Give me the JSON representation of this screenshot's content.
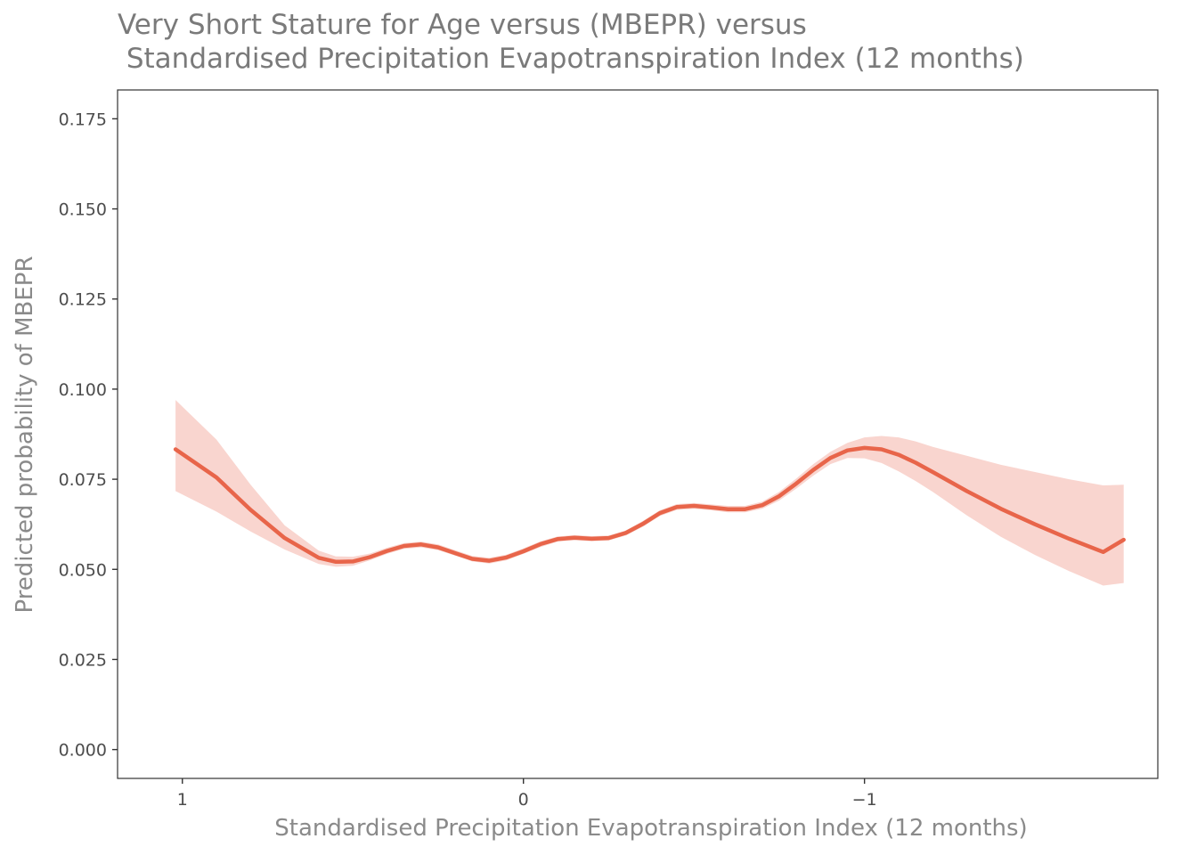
{
  "chart_data": {
    "type": "line",
    "title": "Very Short Stature for Age versus (MBEPR) versus",
    "subtitle": " Standardised Precipitation Evapotranspiration Index (12 months)",
    "xlabel": "Standardised Precipitation Evapotranspiration Index (12 months)",
    "ylabel": "Predicted probability of MBEPR",
    "x_reversed": true,
    "xlim": [
      1.19,
      -1.86
    ],
    "ylim": [
      -0.008,
      0.183
    ],
    "x_ticks": [
      {
        "value": 1,
        "label": "1"
      },
      {
        "value": 0,
        "label": "0"
      },
      {
        "value": -1,
        "label": "−1"
      }
    ],
    "y_ticks": [
      {
        "value": 0.0,
        "label": "0.000"
      },
      {
        "value": 0.025,
        "label": "0.025"
      },
      {
        "value": 0.05,
        "label": "0.050"
      },
      {
        "value": 0.075,
        "label": "0.075"
      },
      {
        "value": 0.1,
        "label": "0.100"
      },
      {
        "value": 0.125,
        "label": "0.125"
      },
      {
        "value": 0.15,
        "label": "0.150"
      },
      {
        "value": 0.175,
        "label": "0.175"
      }
    ],
    "grid": false,
    "colors": {
      "line": "#e8654a",
      "ribbon": "#f9d5cf"
    },
    "series": [
      {
        "x": [
          1.02,
          0.9,
          0.8,
          0.7,
          0.6,
          0.55,
          0.5,
          0.45,
          0.4,
          0.35,
          0.3,
          0.25,
          0.2,
          0.15,
          0.1,
          0.05,
          0.0,
          -0.05,
          -0.1,
          -0.15,
          -0.2,
          -0.25,
          -0.3,
          -0.35,
          -0.4,
          -0.45,
          -0.5,
          -0.55,
          -0.6,
          -0.65,
          -0.7,
          -0.75,
          -0.8,
          -0.85,
          -0.9,
          -0.95,
          -1.0,
          -1.05,
          -1.1,
          -1.15,
          -1.2,
          -1.3,
          -1.4,
          -1.5,
          -1.6,
          -1.7,
          -1.76
        ],
        "y": [
          0.0833,
          0.0755,
          0.0665,
          0.0587,
          0.0532,
          0.0521,
          0.0522,
          0.0534,
          0.0551,
          0.0565,
          0.0569,
          0.0561,
          0.0545,
          0.0529,
          0.0524,
          0.0533,
          0.055,
          0.057,
          0.0584,
          0.0588,
          0.0585,
          0.0587,
          0.0601,
          0.0626,
          0.0656,
          0.0673,
          0.0676,
          0.0672,
          0.0667,
          0.0667,
          0.0678,
          0.0703,
          0.0738,
          0.0776,
          0.0809,
          0.083,
          0.0837,
          0.0833,
          0.0818,
          0.0796,
          0.077,
          0.0717,
          0.0668,
          0.0625,
          0.0585,
          0.0548,
          0.0582
        ],
        "lower": [
          0.0717,
          0.066,
          0.0605,
          0.0555,
          0.0515,
          0.0507,
          0.051,
          0.0525,
          0.0543,
          0.0557,
          0.0561,
          0.0553,
          0.0538,
          0.0522,
          0.0516,
          0.0525,
          0.0543,
          0.0562,
          0.0577,
          0.0581,
          0.0578,
          0.058,
          0.0594,
          0.0618,
          0.0648,
          0.0665,
          0.0668,
          0.0664,
          0.0658,
          0.0658,
          0.0668,
          0.0691,
          0.0724,
          0.076,
          0.0792,
          0.0809,
          0.0808,
          0.0795,
          0.0772,
          0.0745,
          0.0715,
          0.065,
          0.059,
          0.054,
          0.0495,
          0.0455,
          0.0462
        ],
        "upper": [
          0.097,
          0.086,
          0.0735,
          0.0622,
          0.0552,
          0.0536,
          0.0535,
          0.0544,
          0.056,
          0.0573,
          0.0577,
          0.0569,
          0.0553,
          0.0537,
          0.0532,
          0.0541,
          0.0558,
          0.0578,
          0.0591,
          0.0595,
          0.0592,
          0.0594,
          0.0608,
          0.0634,
          0.0664,
          0.0681,
          0.0684,
          0.068,
          0.0676,
          0.0676,
          0.0688,
          0.0715,
          0.0752,
          0.0792,
          0.0826,
          0.0851,
          0.0866,
          0.087,
          0.0866,
          0.0855,
          0.084,
          0.0815,
          0.079,
          0.077,
          0.075,
          0.0733,
          0.0735
        ]
      }
    ]
  }
}
